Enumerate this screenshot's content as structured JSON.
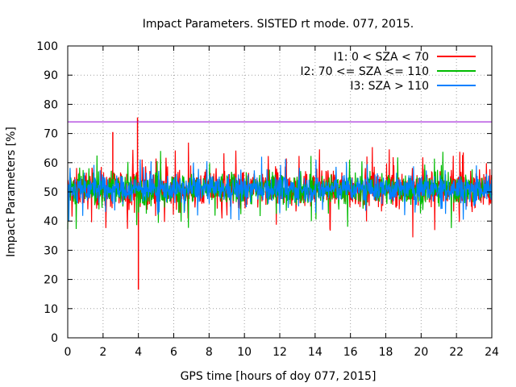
{
  "chart_data": {
    "type": "line",
    "title": "Impact Parameters. SISTED rt mode. 077, 2015.",
    "xlabel": "GPS time [hours of doy 077, 2015]",
    "ylabel": "Impact Parameters [%]",
    "xlim": [
      0,
      24
    ],
    "ylim": [
      0,
      100
    ],
    "xticks": [
      0,
      2,
      4,
      6,
      8,
      10,
      12,
      14,
      16,
      18,
      20,
      22,
      24
    ],
    "yticks": [
      0,
      10,
      20,
      30,
      40,
      50,
      60,
      70,
      80,
      90,
      100
    ],
    "grid": true,
    "legend_position": "top-right",
    "reference_line": {
      "y": 74,
      "color": "#9400d3"
    },
    "series": [
      {
        "name": "I1: 0 < SZA < 70",
        "color": "#ff0000",
        "center": 51,
        "spread": 7,
        "spikes": [
          {
            "x": 2.55,
            "y": 70.5
          },
          {
            "x": 3.95,
            "y": 75.5
          },
          {
            "x": 4.0,
            "y": 16.5
          }
        ]
      },
      {
        "name": "I2: 70 <= SZA <= 110",
        "color": "#00bb00",
        "center": 51,
        "spread": 6,
        "spikes": []
      },
      {
        "name": "I3: SZA > 110",
        "color": "#0080ff",
        "center": 51,
        "spread": 5,
        "spikes": []
      }
    ]
  }
}
